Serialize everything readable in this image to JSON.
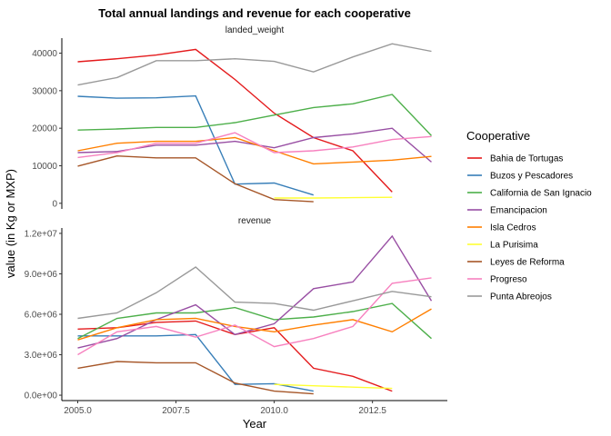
{
  "chart_data": {
    "type": "line",
    "title": "Total annual landings and revenue for each cooperative",
    "xlabel": "Year",
    "ylabel": "value (in Kg or MXP)",
    "legend_title": "Cooperative",
    "legend_position": "right",
    "grid": false,
    "x_ticks": [
      "2005.0",
      "2007.5",
      "2010.0",
      "2012.5"
    ],
    "xlim": [
      2005,
      2014
    ],
    "colors": {
      "Bahia de Tortugas": "#E41A1C",
      "Buzos y Pescadores": "#377EB8",
      "California de San Ignacio": "#4DAF4A",
      "Emancipacion": "#984EA3",
      "Isla Cedros": "#FF7F00",
      "La Purisima": "#FFFF33",
      "Leyes de Reforma": "#A65628",
      "Progreso": "#F781BF",
      "Punta Abreojos": "#999999"
    },
    "panels": [
      {
        "strip": "landed_weight",
        "ylim": [
          -1500,
          44000
        ],
        "y_ticks": [
          {
            "value": 0,
            "label": "0"
          },
          {
            "value": 10000,
            "label": "10000"
          },
          {
            "value": 20000,
            "label": "20000"
          },
          {
            "value": 30000,
            "label": "30000"
          },
          {
            "value": 40000,
            "label": "40000"
          }
        ],
        "series": [
          {
            "name": "Bahia de Tortugas",
            "x": [
              2005,
              2006,
              2007,
              2008,
              2009,
              2010,
              2011,
              2012,
              2013
            ],
            "values": [
              37700,
              38500,
              39500,
              41000,
              33000,
              24000,
              17500,
              14000,
              3000
            ]
          },
          {
            "name": "Buzos y Pescadores",
            "x": [
              2005,
              2006,
              2007,
              2008,
              2009,
              2010,
              2011
            ],
            "values": [
              28500,
              28000,
              28100,
              28600,
              5100,
              5400,
              2200
            ]
          },
          {
            "name": "California de San Ignacio",
            "x": [
              2005,
              2006,
              2007,
              2008,
              2009,
              2010,
              2011,
              2012,
              2013,
              2014
            ],
            "values": [
              19500,
              19800,
              20200,
              20200,
              21500,
              23500,
              25500,
              26500,
              29000,
              18000
            ]
          },
          {
            "name": "Emancipacion",
            "x": [
              2005,
              2006,
              2007,
              2008,
              2009,
              2010,
              2011,
              2012,
              2013,
              2014
            ],
            "values": [
              13500,
              13800,
              15500,
              15500,
              16500,
              14800,
              17500,
              18500,
              20000,
              11000
            ]
          },
          {
            "name": "Isla Cedros",
            "x": [
              2005,
              2006,
              2007,
              2008,
              2009,
              2010,
              2011,
              2012,
              2013,
              2014
            ],
            "values": [
              14000,
              16000,
              16500,
              16500,
              17500,
              14000,
              10500,
              11000,
              11500,
              12500
            ]
          },
          {
            "name": "La Purisima",
            "x": [
              2010,
              2011,
              2012,
              2013
            ],
            "values": [
              1400,
              1400,
              1500,
              1600
            ]
          },
          {
            "name": "Leyes de Reforma",
            "x": [
              2005,
              2006,
              2007,
              2008,
              2009,
              2010,
              2011
            ],
            "values": [
              9900,
              12600,
              12100,
              12100,
              5200,
              1000,
              400
            ]
          },
          {
            "name": "Progreso",
            "x": [
              2005,
              2006,
              2007,
              2008,
              2009,
              2010,
              2011,
              2012,
              2013,
              2014
            ],
            "values": [
              12200,
              13500,
              16000,
              16000,
              18800,
              13500,
              14000,
              15000,
              17000,
              17800
            ]
          },
          {
            "name": "Punta Abreojos",
            "x": [
              2005,
              2006,
              2007,
              2008,
              2009,
              2010,
              2011,
              2012,
              2013,
              2014
            ],
            "values": [
              31500,
              33500,
              38000,
              38000,
              38500,
              37800,
              35000,
              39000,
              42500,
              40500
            ]
          }
        ]
      },
      {
        "strip": "revenue",
        "ylim": [
          -400000,
          12400000
        ],
        "y_ticks": [
          {
            "value": 0,
            "label": "0.0e+00"
          },
          {
            "value": 3000000,
            "label": "3.0e+06"
          },
          {
            "value": 6000000,
            "label": "6.0e+06"
          },
          {
            "value": 9000000,
            "label": "9.0e+06"
          },
          {
            "value": 12000000,
            "label": "1.2e+07"
          }
        ],
        "series": [
          {
            "name": "Bahia de Tortugas",
            "x": [
              2005,
              2006,
              2007,
              2008,
              2009,
              2010,
              2011,
              2012,
              2013
            ],
            "values": [
              4900000,
              5000000,
              5400000,
              5500000,
              4500000,
              5000000,
              2000000,
              1400000,
              300000
            ]
          },
          {
            "name": "Buzos y Pescadores",
            "x": [
              2005,
              2006,
              2007,
              2008,
              2009,
              2010,
              2011
            ],
            "values": [
              4400000,
              4400000,
              4400000,
              4500000,
              800000,
              850000,
              300000
            ]
          },
          {
            "name": "California de San Ignacio",
            "x": [
              2005,
              2006,
              2007,
              2008,
              2009,
              2010,
              2011,
              2012,
              2013,
              2014
            ],
            "values": [
              4200000,
              5700000,
              6100000,
              6100000,
              6500000,
              5600000,
              5800000,
              6200000,
              6800000,
              4200000
            ]
          },
          {
            "name": "Emancipacion",
            "x": [
              2005,
              2006,
              2007,
              2008,
              2009,
              2010,
              2011,
              2012,
              2013,
              2014
            ],
            "values": [
              3500000,
              4200000,
              5600000,
              6700000,
              4500000,
              5300000,
              7900000,
              8400000,
              11800000,
              7000000
            ]
          },
          {
            "name": "Isla Cedros",
            "x": [
              2005,
              2006,
              2007,
              2008,
              2009,
              2010,
              2011,
              2012,
              2013,
              2014
            ],
            "values": [
              4100000,
              5000000,
              5600000,
              5700000,
              5100000,
              4700000,
              5200000,
              5600000,
              4700000,
              6400000
            ]
          },
          {
            "name": "La Purisima",
            "x": [
              2010,
              2011,
              2012,
              2013
            ],
            "values": [
              800000,
              700000,
              600000,
              500000
            ]
          },
          {
            "name": "Leyes de Reforma",
            "x": [
              2005,
              2006,
              2007,
              2008,
              2009,
              2010,
              2011
            ],
            "values": [
              2000000,
              2500000,
              2400000,
              2400000,
              900000,
              300000,
              100000
            ]
          },
          {
            "name": "Progreso",
            "x": [
              2005,
              2006,
              2007,
              2008,
              2009,
              2010,
              2011,
              2012,
              2013,
              2014
            ],
            "values": [
              3000000,
              4700000,
              5100000,
              4300000,
              5200000,
              3600000,
              4200000,
              5100000,
              8300000,
              8700000
            ]
          },
          {
            "name": "Punta Abreojos",
            "x": [
              2005,
              2006,
              2007,
              2008,
              2009,
              2010,
              2011,
              2012,
              2013,
              2014
            ],
            "values": [
              5700000,
              6100000,
              7600000,
              9500000,
              6900000,
              6800000,
              6300000,
              7000000,
              7700000,
              7300000
            ]
          }
        ]
      }
    ]
  }
}
